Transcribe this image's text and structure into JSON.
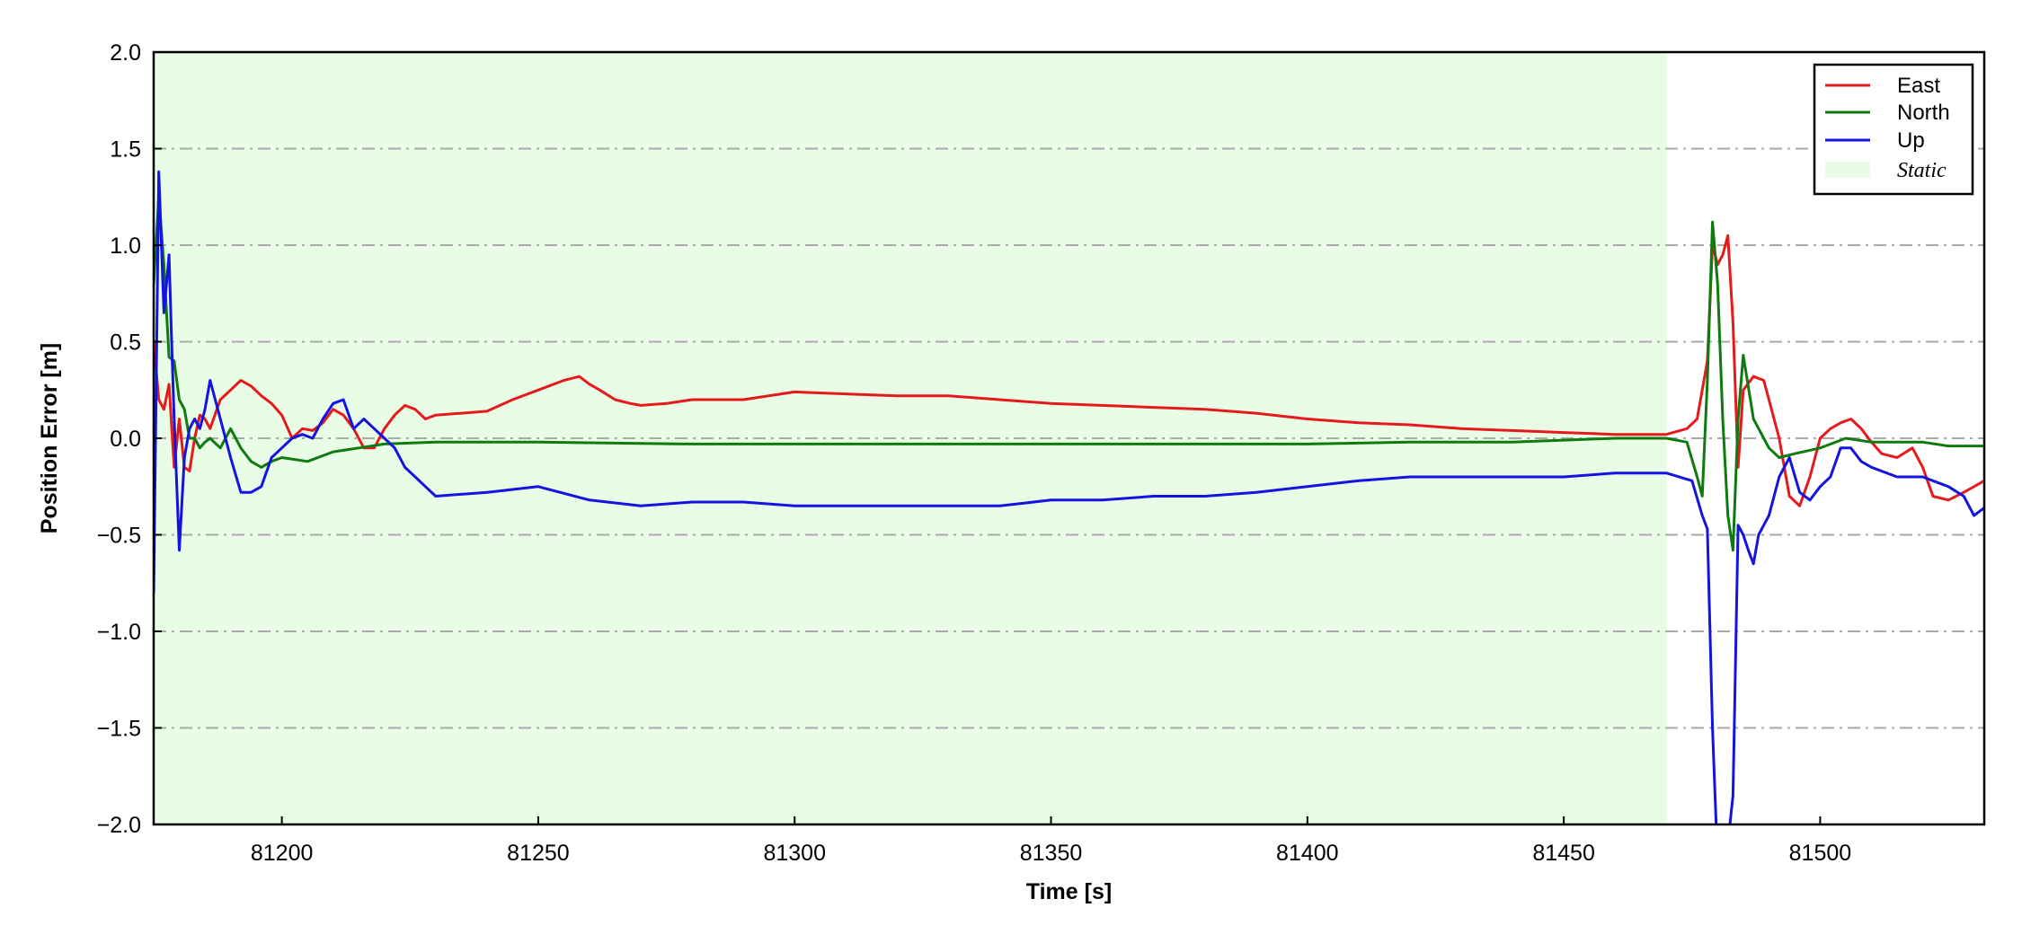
{
  "chart_data": {
    "type": "line",
    "title": "",
    "xlabel": "Time [s]",
    "ylabel": "Position Error [m]",
    "xlim": [
      81175,
      81532
    ],
    "ylim": [
      -2.0,
      2.0
    ],
    "xticks": [
      81200,
      81250,
      81300,
      81350,
      81400,
      81450,
      81500
    ],
    "yticks": [
      -2.0,
      -1.5,
      -1.0,
      -0.5,
      0.0,
      0.5,
      1.0,
      1.5,
      2.0
    ],
    "xtick_labels": [
      "81200",
      "81250",
      "81300",
      "81350",
      "81400",
      "81450",
      "81500"
    ],
    "ytick_labels": [
      "−2.0",
      "−1.5",
      "−1.0",
      "−0.5",
      "0.0",
      "0.5",
      "1.0",
      "1.5",
      "2.0"
    ],
    "grid": "horizontal dash-dot",
    "legend_position": "top-right",
    "shaded_region": {
      "label": "Static",
      "x": [
        81175,
        81470
      ],
      "color": "#e8fce6"
    },
    "series": [
      {
        "name": "East",
        "color": "#e41a1c",
        "x": [
          81175,
          81176,
          81177,
          81178,
          81179,
          81180,
          81181,
          81182,
          81183,
          81184,
          81185,
          81186,
          81188,
          81190,
          81192,
          81194,
          81196,
          81198,
          81200,
          81202,
          81204,
          81206,
          81208,
          81210,
          81212,
          81214,
          81216,
          81218,
          81220,
          81222,
          81224,
          81226,
          81228,
          81230,
          81235,
          81240,
          81245,
          81250,
          81255,
          81258,
          81260,
          81262,
          81265,
          81268,
          81270,
          81275,
          81280,
          81290,
          81300,
          81310,
          81320,
          81330,
          81340,
          81350,
          81360,
          81370,
          81380,
          81390,
          81400,
          81410,
          81420,
          81430,
          81440,
          81450,
          81460,
          81470,
          81474,
          81476,
          81478,
          81479,
          81480,
          81481,
          81482,
          81483,
          81484,
          81485,
          81487,
          81489,
          81490,
          81492,
          81494,
          81496,
          81498,
          81500,
          81502,
          81504,
          81506,
          81508,
          81510,
          81512,
          81515,
          81518,
          81520,
          81522,
          81525,
          81528,
          81530,
          81532
        ],
        "y": [
          0.5,
          0.2,
          0.15,
          0.28,
          -0.15,
          0.1,
          -0.15,
          -0.17,
          0.0,
          0.12,
          0.1,
          0.05,
          0.2,
          0.25,
          0.3,
          0.27,
          0.22,
          0.18,
          0.12,
          0.0,
          0.05,
          0.04,
          0.08,
          0.15,
          0.12,
          0.05,
          -0.05,
          -0.05,
          0.05,
          0.12,
          0.17,
          0.15,
          0.1,
          0.12,
          0.13,
          0.14,
          0.2,
          0.25,
          0.3,
          0.32,
          0.28,
          0.25,
          0.2,
          0.18,
          0.17,
          0.18,
          0.2,
          0.2,
          0.24,
          0.23,
          0.22,
          0.22,
          0.2,
          0.18,
          0.17,
          0.16,
          0.15,
          0.13,
          0.1,
          0.08,
          0.07,
          0.05,
          0.04,
          0.03,
          0.02,
          0.02,
          0.05,
          0.1,
          0.4,
          1.0,
          0.9,
          0.95,
          1.05,
          0.6,
          -0.15,
          0.25,
          0.32,
          0.3,
          0.2,
          0.0,
          -0.3,
          -0.35,
          -0.2,
          0.0,
          0.05,
          0.08,
          0.1,
          0.05,
          -0.02,
          -0.08,
          -0.1,
          -0.05,
          -0.15,
          -0.3,
          -0.32,
          -0.28,
          -0.25,
          -0.22
        ]
      },
      {
        "name": "North",
        "color": "#0f7a0f",
        "x": [
          81175,
          81176,
          81177,
          81178,
          81179,
          81180,
          81181,
          81182,
          81183,
          81184,
          81185,
          81186,
          81188,
          81190,
          81192,
          81194,
          81196,
          81198,
          81200,
          81205,
          81210,
          81215,
          81220,
          81230,
          81250,
          81280,
          81300,
          81330,
          81350,
          81380,
          81400,
          81420,
          81440,
          81460,
          81470,
          81474,
          81476,
          81477,
          81478,
          81479,
          81480,
          81481,
          81482,
          81483,
          81484,
          81485,
          81487,
          81490,
          81492,
          81495,
          81500,
          81505,
          81510,
          81520,
          81525,
          81532
        ],
        "y": [
          0.8,
          1.25,
          0.9,
          0.42,
          0.4,
          0.2,
          0.15,
          0.0,
          0.0,
          -0.05,
          -0.02,
          0.0,
          -0.05,
          0.05,
          -0.05,
          -0.12,
          -0.15,
          -0.12,
          -0.1,
          -0.12,
          -0.07,
          -0.05,
          -0.03,
          -0.02,
          -0.02,
          -0.03,
          -0.03,
          -0.03,
          -0.03,
          -0.03,
          -0.03,
          -0.02,
          -0.02,
          0.0,
          0.0,
          -0.02,
          -0.2,
          -0.3,
          0.3,
          1.12,
          0.8,
          0.1,
          -0.4,
          -0.58,
          0.1,
          0.43,
          0.1,
          -0.05,
          -0.1,
          -0.08,
          -0.05,
          0.0,
          -0.02,
          -0.02,
          -0.04,
          -0.04
        ]
      },
      {
        "name": "Up",
        "color": "#1414e0",
        "x": [
          81175,
          81176,
          81177,
          81177.5,
          81178,
          81178.5,
          81179,
          81180,
          81181,
          81182,
          81183,
          81184,
          81185,
          81186,
          81187,
          81188,
          81189,
          81190,
          81192,
          81194,
          81196,
          81198,
          81200,
          81202,
          81204,
          81206,
          81208,
          81210,
          81212,
          81214,
          81216,
          81218,
          81220,
          81222,
          81224,
          81226,
          81228,
          81230,
          81240,
          81250,
          81260,
          81270,
          81280,
          81290,
          81300,
          81310,
          81320,
          81330,
          81340,
          81350,
          81360,
          81370,
          81380,
          81390,
          81400,
          81410,
          81420,
          81430,
          81440,
          81450,
          81460,
          81470,
          81475,
          81477,
          81478,
          81479,
          81480,
          81481,
          81482,
          81483,
          81484,
          81485,
          81486,
          81487,
          81488,
          81489,
          81490,
          81492,
          81494,
          81496,
          81498,
          81500,
          81502,
          81504,
          81506,
          81508,
          81510,
          81515,
          81520,
          81525,
          81528,
          81530,
          81532
        ],
        "y": [
          -0.8,
          1.38,
          0.65,
          0.8,
          0.95,
          0.5,
          0.1,
          -0.58,
          -0.1,
          0.05,
          0.1,
          0.05,
          0.15,
          0.3,
          0.2,
          0.1,
          0.0,
          -0.1,
          -0.28,
          -0.28,
          -0.25,
          -0.1,
          -0.05,
          0.0,
          0.02,
          0.0,
          0.1,
          0.18,
          0.2,
          0.05,
          0.1,
          0.05,
          0.0,
          -0.05,
          -0.15,
          -0.2,
          -0.25,
          -0.3,
          -0.28,
          -0.25,
          -0.32,
          -0.35,
          -0.33,
          -0.33,
          -0.35,
          -0.35,
          -0.35,
          -0.35,
          -0.35,
          -0.32,
          -0.32,
          -0.3,
          -0.3,
          -0.28,
          -0.25,
          -0.22,
          -0.2,
          -0.2,
          -0.2,
          -0.2,
          -0.18,
          -0.18,
          -0.22,
          -0.4,
          -0.47,
          -1.5,
          -2.2,
          -2.2,
          -2.1,
          -1.85,
          -0.45,
          -0.5,
          -0.58,
          -0.65,
          -0.5,
          -0.45,
          -0.4,
          -0.2,
          -0.1,
          -0.28,
          -0.32,
          -0.25,
          -0.2,
          -0.05,
          -0.05,
          -0.12,
          -0.15,
          -0.2,
          -0.2,
          -0.25,
          -0.3,
          -0.4,
          -0.36
        ]
      }
    ]
  }
}
